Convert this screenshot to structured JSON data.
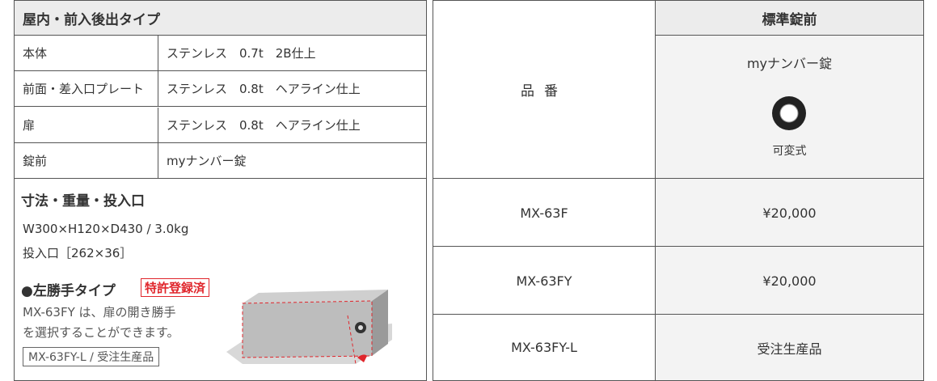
{
  "spec": {
    "title": "屋内・前入後出タイプ",
    "rows": [
      [
        "本体",
        "ステンレス　0.7t　2B仕上"
      ],
      [
        "前面・差入口プレート",
        "ステンレス　0.8t　ヘアライン仕上"
      ],
      [
        "扉",
        "ステンレス　0.8t　ヘアライン仕上"
      ],
      [
        "錠前",
        "myナンバー錠"
      ]
    ]
  },
  "size": {
    "title": "寸法・重量・投入口",
    "lines": [
      "W300×H120×D430 / 3.0kg",
      "投入口［262×36］"
    ]
  },
  "option": {
    "title": "●左勝手タイプ",
    "badge": "特許登録済",
    "description": [
      "MX-63FY は、扉の開き勝手",
      "を選択することができます。"
    ],
    "note": "MX-63FY-L / 受注生産品"
  },
  "price_table": {
    "col_header": "品番",
    "lock_header": "標準錠前",
    "lock_name": "myナンバー錠",
    "lock_type": "可変式",
    "rows": [
      [
        "MX-63F",
        "¥20,000"
      ],
      [
        "MX-63FY",
        "¥20,000"
      ],
      [
        "MX-63FY-L",
        "受注生産品"
      ]
    ]
  }
}
